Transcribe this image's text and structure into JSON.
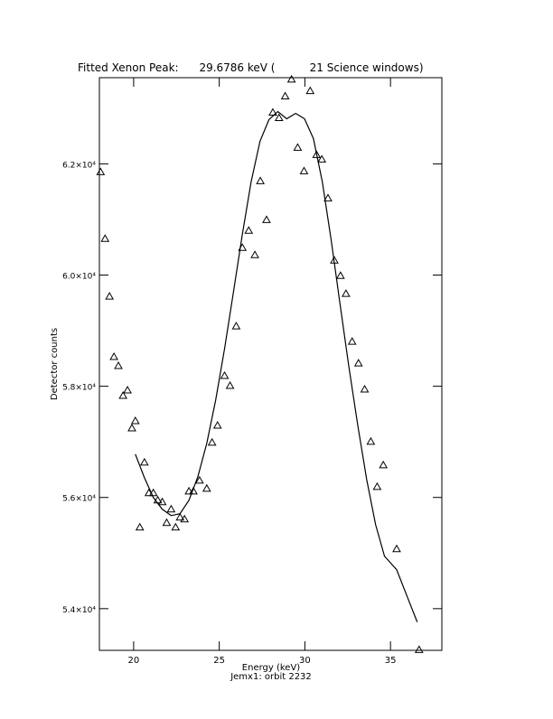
{
  "chart_data": {
    "type": "scatter",
    "title": "Fitted Xenon Peak:      29.6786 keV (          21 Science windows)",
    "xlabel": "Energy (keV)",
    "subtitle": "Jemx1: orbit 2232",
    "ylabel": "Detector counts",
    "xlim": [
      18,
      38
    ],
    "xticks": [
      20,
      25,
      30,
      35
    ],
    "ylim": [
      53250,
      63550
    ],
    "yticks": [
      {
        "value": 54000,
        "label": "5.4×10⁴"
      },
      {
        "value": 56000,
        "label": "5.6×10⁴"
      },
      {
        "value": 58000,
        "label": "5.8×10⁴"
      },
      {
        "value": 60000,
        "label": "6.0×10⁴"
      },
      {
        "value": 62000,
        "label": "6.2×10⁴"
      }
    ],
    "series": [
      {
        "name": "data",
        "color": "#000000",
        "marker": "triangle",
        "x": [
          18.07,
          18.33,
          18.59,
          18.85,
          19.11,
          19.38,
          19.64,
          19.9,
          20.1,
          20.36,
          20.63,
          20.89,
          21.15,
          21.41,
          21.67,
          21.93,
          22.19,
          22.45,
          22.71,
          22.97,
          23.23,
          23.49,
          23.85,
          24.27,
          24.58,
          24.9,
          25.31,
          25.63,
          25.99,
          26.35,
          26.72,
          27.08,
          27.4,
          27.76,
          28.13,
          28.49,
          28.85,
          29.22,
          29.58,
          29.95,
          30.31,
          30.68,
          30.99,
          31.35,
          31.72,
          32.08,
          32.4,
          32.76,
          33.13,
          33.49,
          33.85,
          34.22,
          34.58,
          35.36,
          36.67
        ],
        "values": [
          61854,
          60654,
          59616,
          58529,
          58367,
          57831,
          57929,
          57247,
          57377,
          55463,
          56631,
          56080,
          56080,
          55950,
          55918,
          55545,
          55788,
          55463,
          55642,
          55610,
          56112,
          56112,
          56307,
          56161,
          56988,
          57296,
          58188,
          58010,
          59080,
          60492,
          60800,
          60362,
          61692,
          60994,
          62925,
          62827,
          63216,
          63520,
          62292,
          61870,
          63313,
          62162,
          62081,
          61384,
          60265,
          59989,
          59665,
          58805,
          58415,
          57945,
          57004,
          56193,
          56583,
          55074,
          53260
        ]
      },
      {
        "name": "fit",
        "color": "#000000",
        "marker": "line",
        "x": [
          20.1,
          20.63,
          21.15,
          21.67,
          22.19,
          22.71,
          23.23,
          23.75,
          24.27,
          24.79,
          25.31,
          25.83,
          26.35,
          26.86,
          27.38,
          27.9,
          28.42,
          28.94,
          29.46,
          29.98,
          30.5,
          31.02,
          31.54,
          32.05,
          32.57,
          33.09,
          33.61,
          34.13,
          34.65,
          35.36,
          35.98,
          36.56
        ],
        "values": [
          56777,
          56355,
          55999,
          55788,
          55674,
          55707,
          55950,
          56372,
          56972,
          57750,
          58675,
          59697,
          60735,
          61676,
          62406,
          62795,
          62941,
          62811,
          62908,
          62811,
          62454,
          61676,
          60621,
          59486,
          58350,
          57296,
          56323,
          55512,
          54944,
          54701,
          54214,
          53760
        ]
      }
    ]
  }
}
